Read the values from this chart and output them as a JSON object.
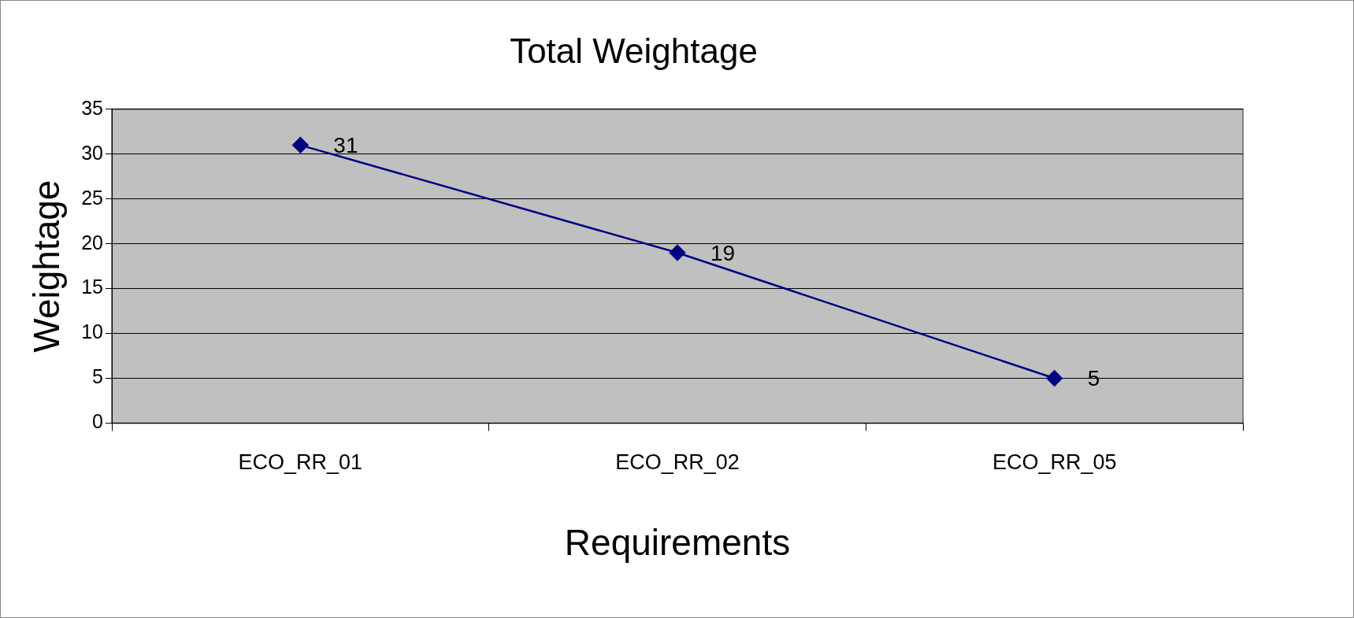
{
  "chart_data": {
    "type": "line",
    "title": "Total Weightage",
    "xlabel": "Requirements",
    "ylabel": "Weightage",
    "categories": [
      "ECO_RR_01",
      "ECO_RR_02",
      "ECO_RR_05"
    ],
    "series": [
      {
        "color": "#000080",
        "values": [
          31,
          19,
          5
        ]
      }
    ],
    "ylim": [
      0,
      35
    ],
    "yticks": [
      0,
      5,
      10,
      15,
      20,
      25,
      30,
      35
    ],
    "grid": "y",
    "marker": "diamond",
    "line_style": "solid",
    "data_labels": true
  }
}
